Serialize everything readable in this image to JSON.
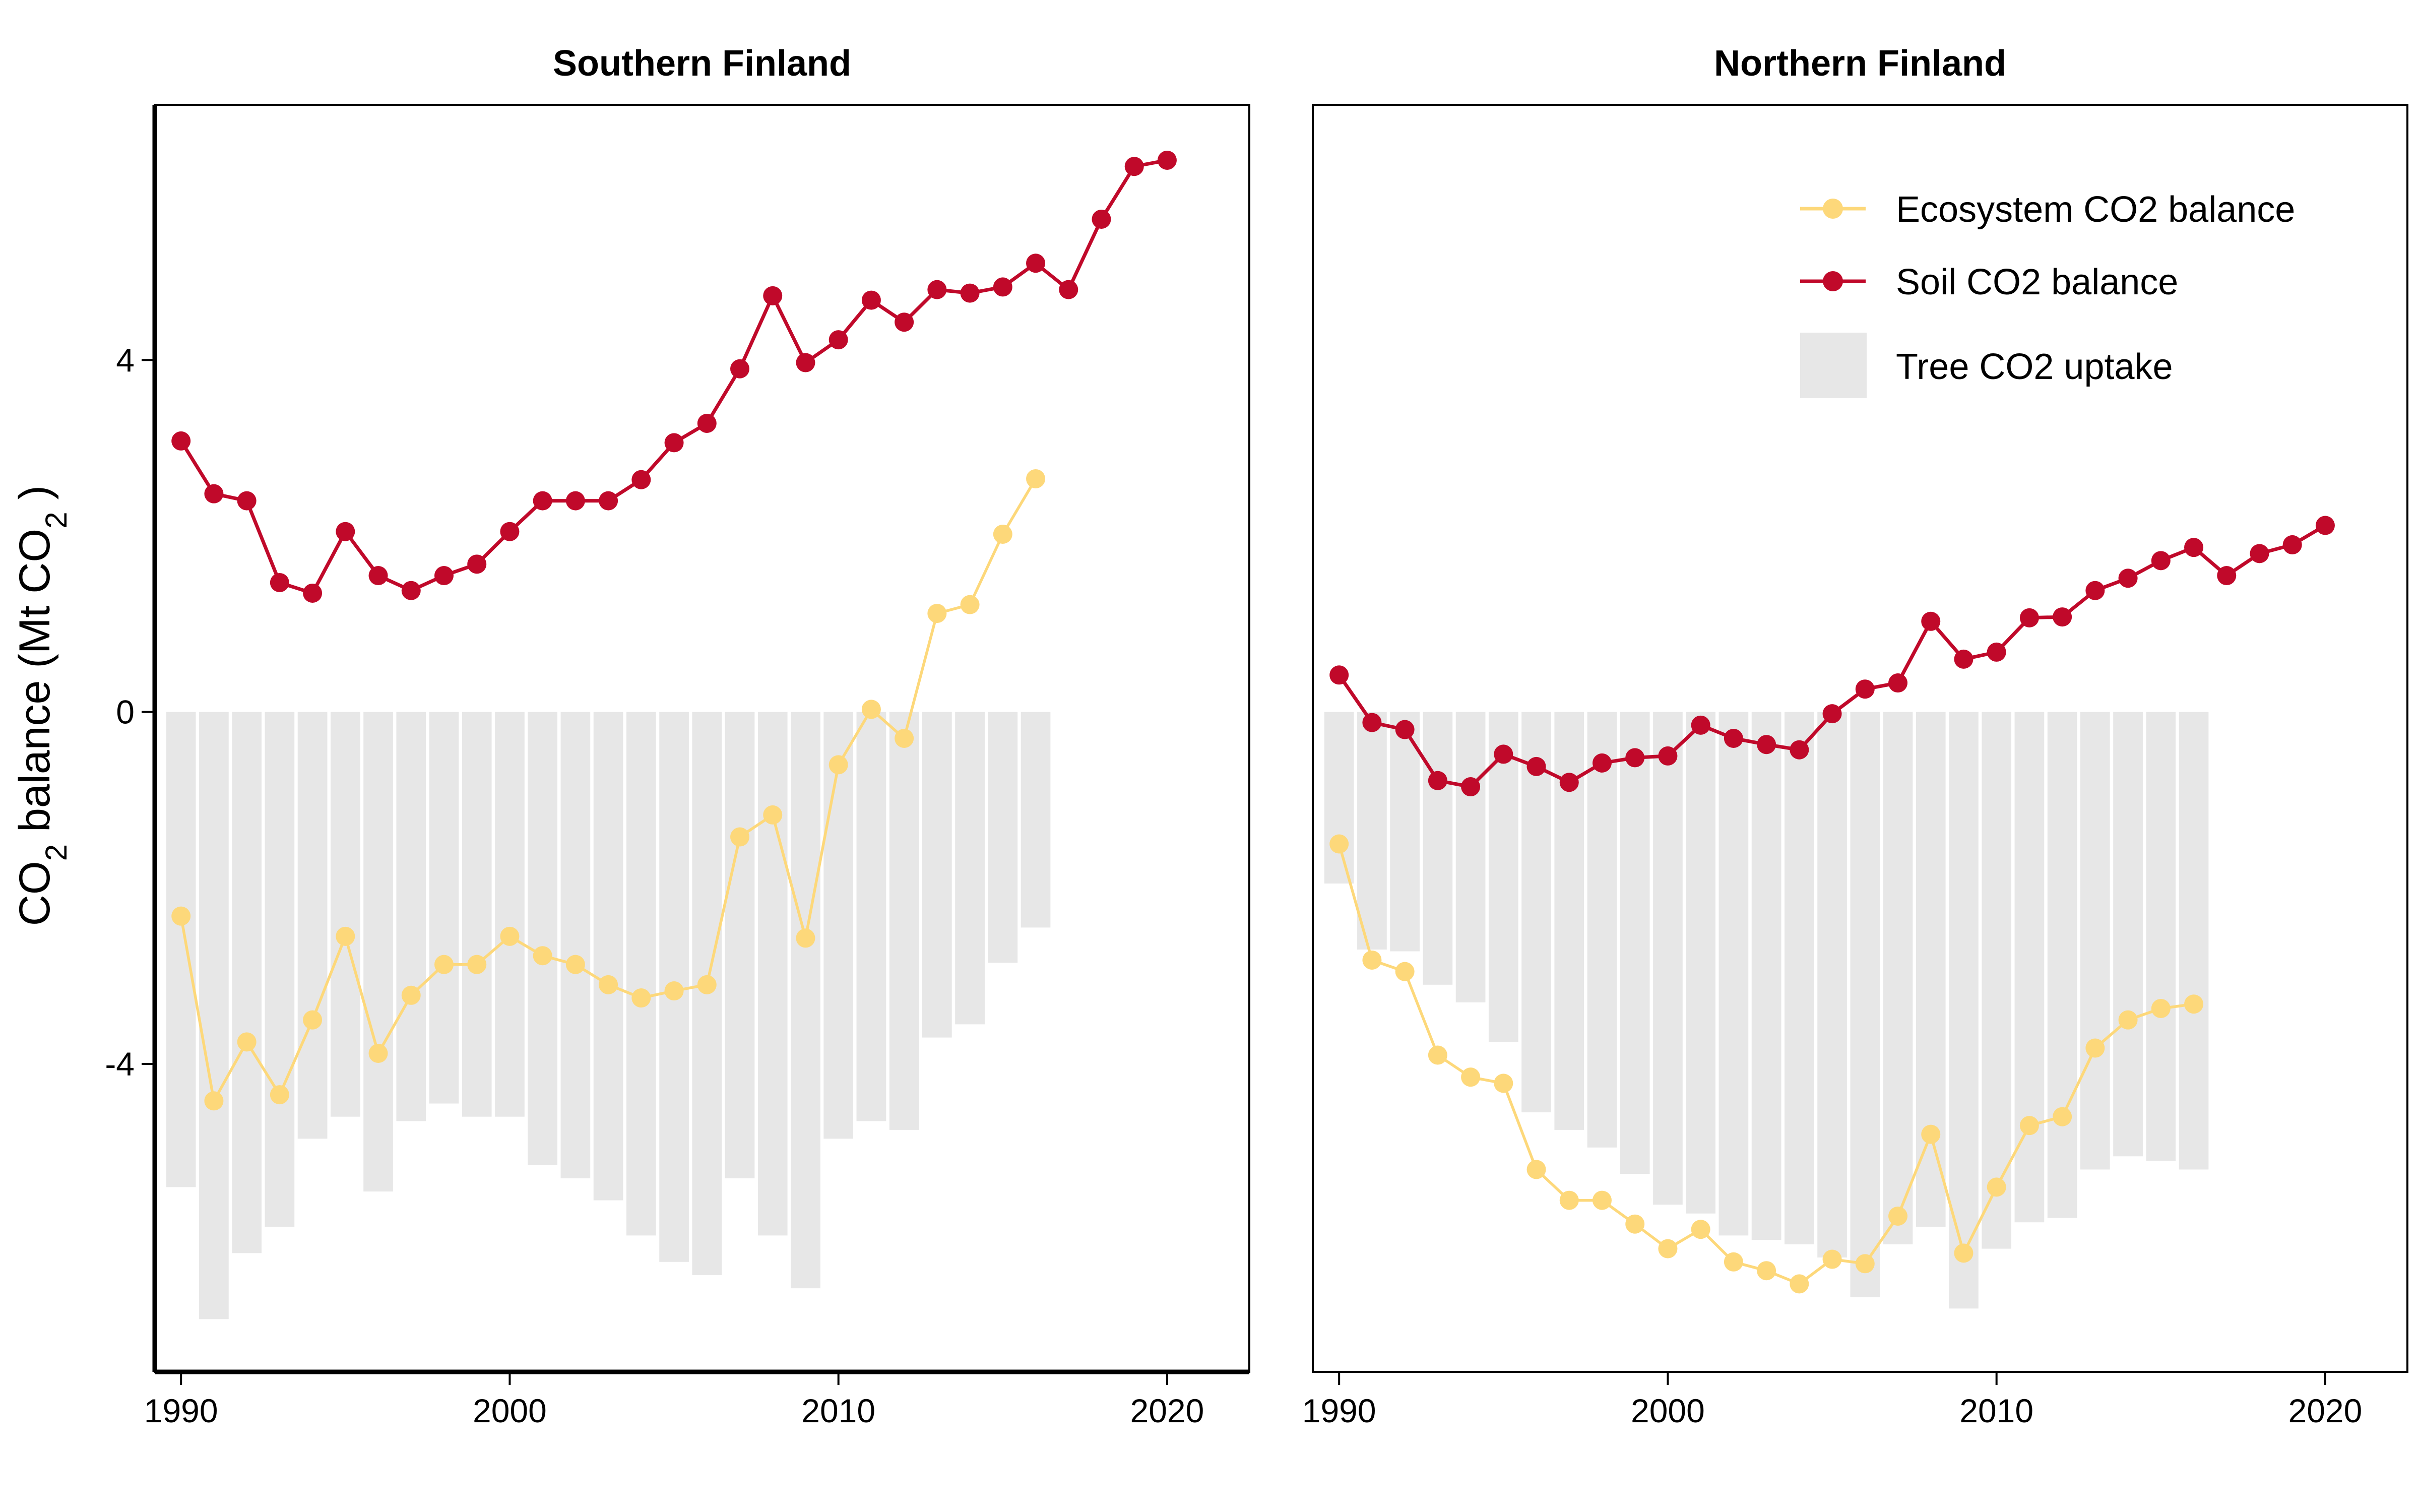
{
  "ylabel": {
    "main": "CO",
    "sub": "2",
    "mid": " balance (Mt  CO",
    "sub2": "2",
    "end": " )"
  },
  "colors": {
    "ecosystem": "#FDD87A",
    "soil": "#C0092A",
    "tree": "#E7E7E7",
    "axis": "#000000"
  },
  "legend": {
    "placement": "top-right of Northern Finland panel",
    "items": [
      {
        "label": "Ecosystem CO2 balance",
        "type": "line-point",
        "color": "#FDD87A"
      },
      {
        "label": "Soil CO2 balance",
        "type": "line-point",
        "color": "#C0092A"
      },
      {
        "label": "Tree CO2 uptake",
        "type": "bar",
        "color": "#E7E7E7"
      }
    ]
  },
  "chart_data": [
    {
      "type": "bar+line",
      "title": "Southern Finland",
      "xlabel": "",
      "ylabel": "CO2 balance (Mt CO2 )",
      "xlim": [
        1989.2,
        2022.5
      ],
      "ylim": [
        -7.5,
        6.9
      ],
      "xticks": [
        1990,
        2000,
        2010,
        2020
      ],
      "yticks": [
        4,
        0,
        -4
      ],
      "ytick_labels": [
        "4",
        "0",
        "-4"
      ],
      "grid": false,
      "series": [
        {
          "name": "Tree CO2 uptake",
          "kind": "bar",
          "x": [
            1990,
            1991,
            1992,
            1993,
            1994,
            1995,
            1996,
            1997,
            1998,
            1999,
            2000,
            2001,
            2002,
            2003,
            2004,
            2005,
            2006,
            2007,
            2008,
            2009,
            2010,
            2011,
            2012,
            2013,
            2014,
            2015,
            2016
          ],
          "values": [
            -5.4,
            -6.9,
            -6.15,
            -5.85,
            -4.85,
            -4.6,
            -5.45,
            -4.65,
            -4.45,
            -4.6,
            -4.6,
            -5.15,
            -5.3,
            -5.55,
            -5.95,
            -6.25,
            -6.4,
            -5.3,
            -5.95,
            -6.55,
            -4.85,
            -4.65,
            -4.75,
            -3.7,
            -3.55,
            -2.85,
            -2.45
          ]
        },
        {
          "name": "Soil CO2 balance",
          "kind": "line",
          "x": [
            1990,
            1991,
            1992,
            1993,
            1994,
            1995,
            1996,
            1997,
            1998,
            1999,
            2000,
            2001,
            2002,
            2003,
            2004,
            2005,
            2006,
            2007,
            2008,
            2009,
            2010,
            2011,
            2012,
            2013,
            2014,
            2015,
            2016,
            2017,
            2018,
            2019,
            2020
          ],
          "values": [
            3.08,
            2.48,
            2.4,
            1.47,
            1.35,
            2.05,
            1.55,
            1.38,
            1.55,
            1.68,
            2.05,
            2.4,
            2.4,
            2.4,
            2.64,
            3.06,
            3.28,
            3.9,
            4.73,
            3.97,
            4.23,
            4.68,
            4.43,
            4.8,
            4.76,
            4.83,
            5.1,
            4.8,
            5.6,
            6.2,
            6.27
          ]
        },
        {
          "name": "Ecosystem CO2 balance",
          "kind": "line",
          "x": [
            1990,
            1991,
            1992,
            1993,
            1994,
            1995,
            1996,
            1997,
            1998,
            1999,
            2000,
            2001,
            2002,
            2003,
            2004,
            2005,
            2006,
            2007,
            2008,
            2009,
            2010,
            2011,
            2012,
            2013,
            2014,
            2015,
            2016
          ],
          "values": [
            -2.32,
            -4.42,
            -3.75,
            -4.35,
            -3.5,
            -2.55,
            -3.88,
            -3.22,
            -2.87,
            -2.87,
            -2.55,
            -2.77,
            -2.87,
            -3.1,
            -3.25,
            -3.17,
            -3.1,
            -1.42,
            -1.17,
            -2.57,
            -0.6,
            0.03,
            -0.3,
            1.12,
            1.22,
            2.02,
            2.65
          ]
        }
      ]
    },
    {
      "type": "bar+line",
      "title": "Northern Finland",
      "xlabel": "",
      "ylabel": "",
      "xlim": [
        1989.2,
        2022.5
      ],
      "ylim": [
        -7.5,
        6.9
      ],
      "xticks": [
        1990,
        2000,
        2010,
        2020
      ],
      "grid": false,
      "series": [
        {
          "name": "Tree CO2 uptake",
          "kind": "bar",
          "x": [
            1990,
            1991,
            1992,
            1993,
            1994,
            1995,
            1996,
            1997,
            1998,
            1999,
            2000,
            2001,
            2002,
            2003,
            2004,
            2005,
            2006,
            2007,
            2008,
            2009,
            2010,
            2011,
            2012,
            2013,
            2014,
            2015,
            2016
          ],
          "values": [
            -1.95,
            -2.7,
            -2.72,
            -3.1,
            -3.3,
            -3.75,
            -4.55,
            -4.75,
            -4.95,
            -5.25,
            -5.6,
            -5.7,
            -5.95,
            -6.0,
            -6.05,
            -6.2,
            -6.65,
            -6.05,
            -5.85,
            -6.78,
            -6.1,
            -5.8,
            -5.75,
            -5.2,
            -5.05,
            -5.1,
            -5.2
          ]
        },
        {
          "name": "Soil CO2 balance",
          "kind": "line",
          "x": [
            1990,
            1991,
            1992,
            1993,
            1994,
            1995,
            1996,
            1997,
            1998,
            1999,
            2000,
            2001,
            2002,
            2003,
            2004,
            2005,
            2006,
            2007,
            2008,
            2009,
            2010,
            2011,
            2012,
            2013,
            2014,
            2015,
            2016,
            2017,
            2018,
            2019,
            2020
          ],
          "values": [
            0.42,
            -0.12,
            -0.2,
            -0.78,
            -0.85,
            -0.48,
            -0.62,
            -0.8,
            -0.58,
            -0.52,
            -0.5,
            -0.15,
            -0.3,
            -0.37,
            -0.43,
            -0.02,
            0.26,
            0.33,
            1.03,
            0.6,
            0.68,
            1.07,
            1.08,
            1.38,
            1.52,
            1.72,
            1.87,
            1.55,
            1.8,
            1.9,
            2.12
          ]
        },
        {
          "name": "Ecosystem CO2 balance",
          "kind": "line",
          "x": [
            1990,
            1991,
            1992,
            1993,
            1994,
            1995,
            1996,
            1997,
            1998,
            1999,
            2000,
            2001,
            2002,
            2003,
            2004,
            2005,
            2006,
            2007,
            2008,
            2009,
            2010,
            2011,
            2012,
            2013,
            2014,
            2015,
            2016
          ],
          "values": [
            -1.5,
            -2.82,
            -2.95,
            -3.9,
            -4.15,
            -4.22,
            -5.2,
            -5.55,
            -5.55,
            -5.82,
            -6.1,
            -5.88,
            -6.25,
            -6.35,
            -6.5,
            -6.22,
            -6.27,
            -5.73,
            -4.8,
            -6.15,
            -5.4,
            -4.7,
            -4.6,
            -3.82,
            -3.5,
            -3.37,
            -3.32
          ]
        }
      ]
    }
  ]
}
